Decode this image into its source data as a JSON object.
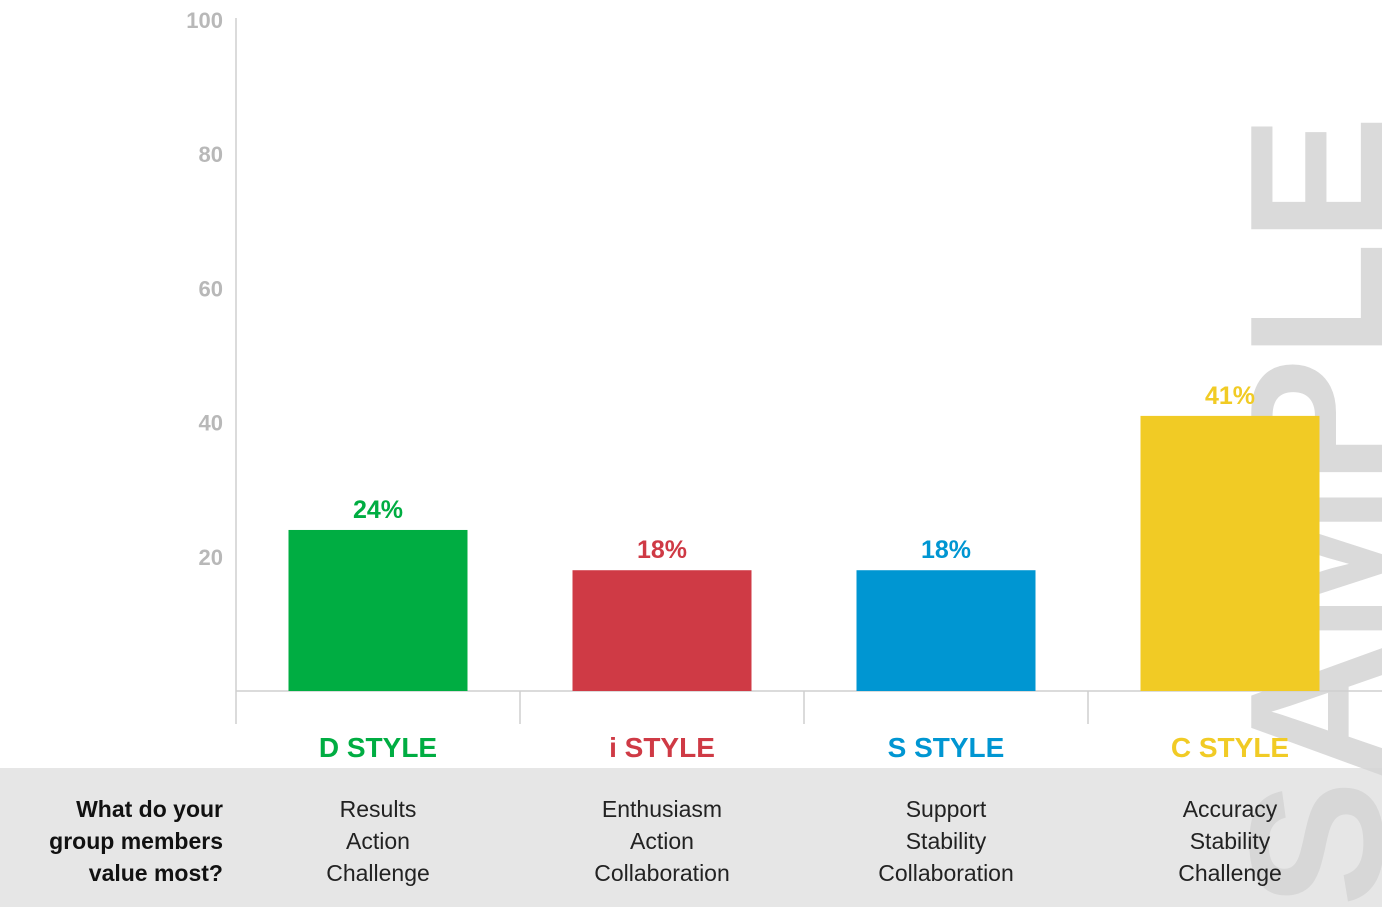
{
  "chart_data": {
    "type": "bar",
    "categories": [
      "D STYLE",
      "i STYLE",
      "S STYLE",
      "C STYLE"
    ],
    "values": [
      24,
      18,
      18,
      41
    ],
    "data_labels": [
      "24%",
      "18%",
      "18%",
      "41%"
    ],
    "colors": [
      "#00ad42",
      "#cf3a45",
      "#0096d2",
      "#f1cb25"
    ],
    "ylim": [
      0,
      100
    ],
    "yticks": [
      20,
      40,
      60,
      80,
      100
    ],
    "grid": false,
    "legend": "none",
    "title": "",
    "xlabel": "",
    "ylabel": ""
  },
  "table": {
    "question": [
      "What do your",
      "group members",
      "value most?"
    ],
    "rows": [
      [
        "Results",
        "Action",
        "Challenge"
      ],
      [
        "Enthusiasm",
        "Action",
        "Collaboration"
      ],
      [
        "Support",
        "Stability",
        "Collaboration"
      ],
      [
        "Accuracy",
        "Stability",
        "Challenge"
      ]
    ]
  },
  "watermark": "SAMPLE"
}
